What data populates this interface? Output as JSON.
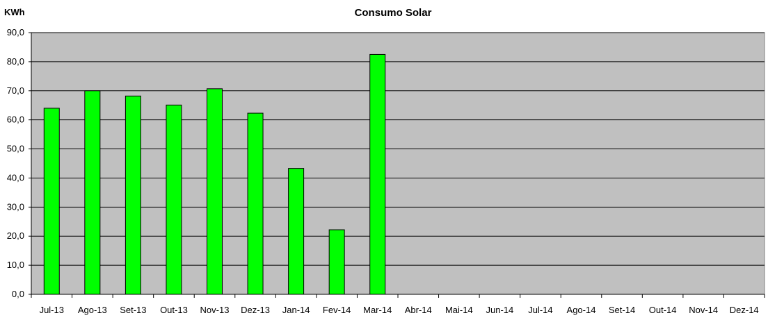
{
  "chart_data": {
    "type": "bar",
    "title": "Consumo Solar",
    "ylabel": "KWh",
    "xlabel": "",
    "ylim": [
      0,
      90
    ],
    "yticks": [
      "0,0",
      "10,0",
      "20,0",
      "30,0",
      "40,0",
      "50,0",
      "60,0",
      "70,0",
      "80,0",
      "90,0"
    ],
    "categories": [
      "Jul-13",
      "Ago-13",
      "Set-13",
      "Out-13",
      "Nov-13",
      "Dez-13",
      "Jan-14",
      "Fev-14",
      "Mar-14",
      "Abr-14",
      "Mai-14",
      "Jun-14",
      "Jul-14",
      "Ago-14",
      "Set-14",
      "Out-14",
      "Nov-14",
      "Dez-14"
    ],
    "values": [
      64,
      70,
      68.2,
      65.1,
      70.7,
      62.3,
      43.3,
      22.2,
      82.5,
      null,
      null,
      null,
      null,
      null,
      null,
      null,
      null,
      null
    ],
    "grid": true,
    "legend": "none",
    "colors": {
      "bar": "#00ff00",
      "plot_background": "#c0c0c0"
    }
  }
}
